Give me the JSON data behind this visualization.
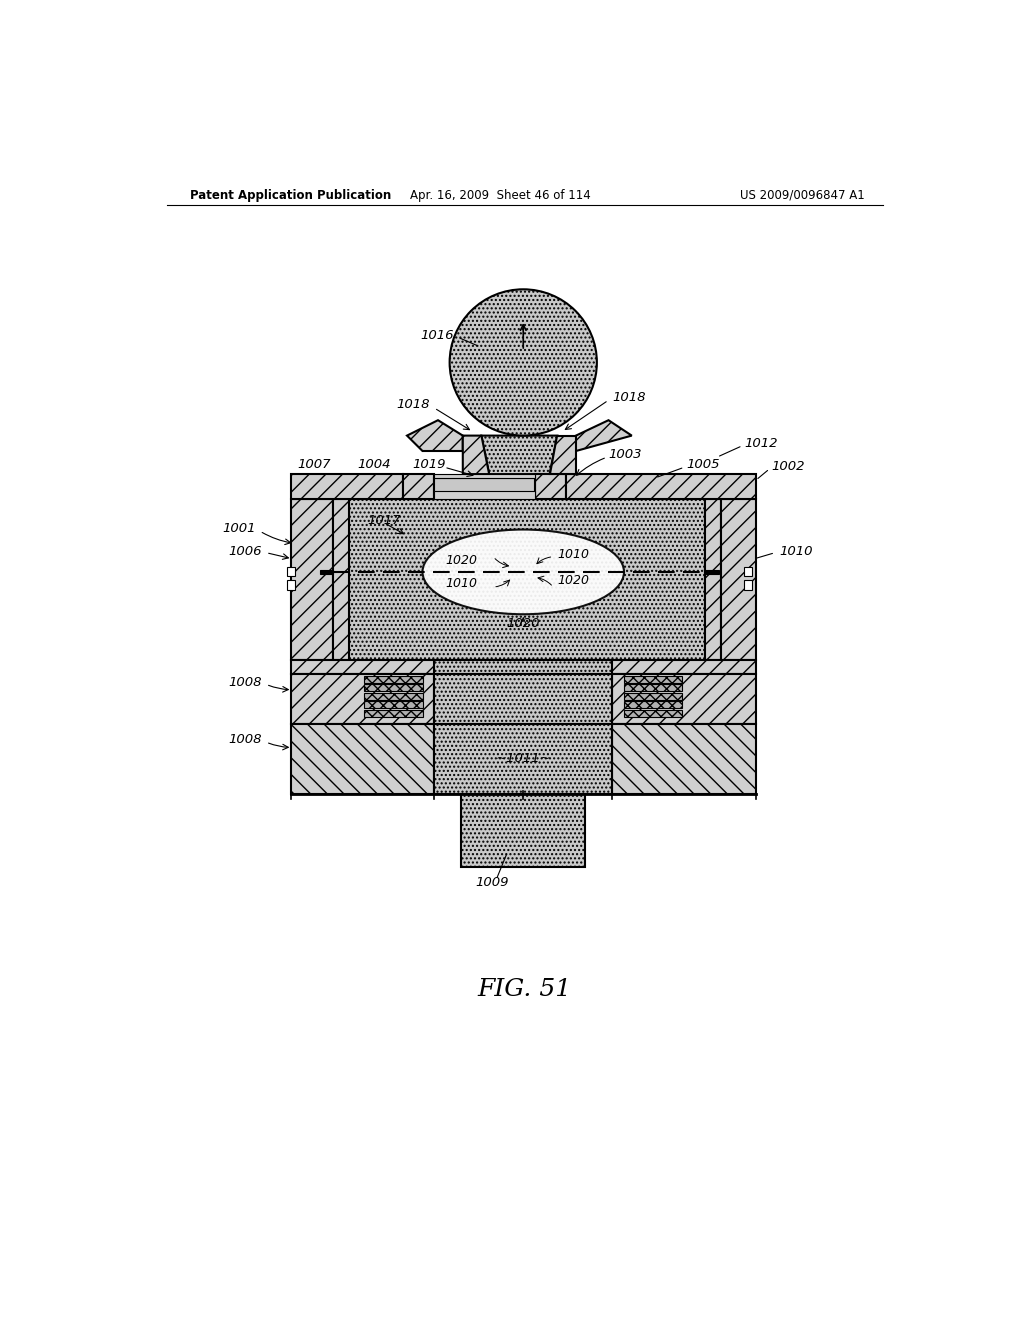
{
  "title_left": "Patent Application Publication",
  "title_mid": "Apr. 16, 2009  Sheet 46 of 114",
  "title_right": "US 2009/0096847 A1",
  "fig_label": "FIG. 51",
  "bg_color": "#ffffff"
}
